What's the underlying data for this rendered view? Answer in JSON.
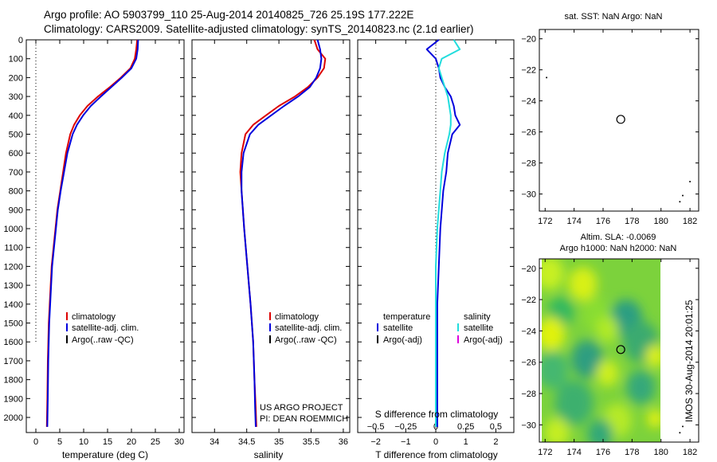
{
  "header": {
    "line1": "Argo profile: AO 5903799_110 25-Aug-2014 20140825_726 25.19S 177.222E",
    "line2": "Climatology: CARS2009. Satellite-adjusted climatology: synTS_20140823.nc (2.1d earlier)"
  },
  "side_label": "IMOS 30-Aug-2014 20:01:25",
  "colors": {
    "climatology": "#dd0000",
    "satellite": "#0000dd",
    "argo": "#000000",
    "sat_salinity": "#22dddd",
    "argo_salinity": "#dd00dd"
  },
  "chart_data": [
    {
      "type": "line",
      "id": "temperature",
      "xlabel": "temperature (deg C)",
      "ylabel": "",
      "xlim": [
        -2,
        31
      ],
      "ylim": [
        2080,
        0
      ],
      "xticks": [
        0,
        5,
        10,
        15,
        20,
        25,
        30
      ],
      "yticks": [
        0,
        100,
        200,
        300,
        400,
        500,
        600,
        700,
        800,
        900,
        1000,
        1100,
        1200,
        1300,
        1400,
        1500,
        1600,
        1700,
        1800,
        1900,
        2000
      ],
      "legend": [
        "climatology",
        "satellite-adj. clim.",
        "Argo(..raw -QC)"
      ],
      "series": [
        {
          "name": "climatology",
          "color": "#dd0000",
          "x": [
            21.2,
            21.0,
            20.7,
            19.8,
            17.8,
            15.5,
            13.0,
            10.8,
            9.2,
            8.0,
            7.2,
            6.3,
            5.7,
            5.1,
            4.5,
            4.1,
            3.7,
            3.3,
            3.1,
            2.9,
            2.7,
            2.5,
            2.4,
            2.3
          ],
          "y": [
            0,
            50,
            100,
            150,
            200,
            250,
            300,
            350,
            400,
            450,
            500,
            600,
            700,
            800,
            900,
            1000,
            1100,
            1200,
            1300,
            1400,
            1500,
            1700,
            1900,
            2050
          ]
        },
        {
          "name": "satellite-adj. clim.",
          "color": "#0000dd",
          "x": [
            21.4,
            21.3,
            21.0,
            20.0,
            18.0,
            15.8,
            13.6,
            11.5,
            9.9,
            8.6,
            7.7,
            6.6,
            5.9,
            5.2,
            4.6,
            4.2,
            3.8,
            3.4,
            3.2,
            3.0,
            2.8,
            2.6,
            2.5,
            2.4
          ],
          "y": [
            0,
            50,
            100,
            150,
            200,
            250,
            300,
            350,
            400,
            450,
            500,
            600,
            700,
            800,
            900,
            1000,
            1100,
            1200,
            1300,
            1400,
            1500,
            1700,
            1900,
            2050
          ]
        }
      ],
      "guide_x": 0
    },
    {
      "type": "line",
      "id": "salinity",
      "xlabel": "salinity",
      "xlim": [
        33.65,
        36.1
      ],
      "ylim": [
        2080,
        0
      ],
      "xticks": [
        34,
        34.5,
        35,
        35.5,
        36
      ],
      "legend": [
        "climatology",
        "satellite-adj. clim.",
        "Argo(..raw -QC)"
      ],
      "annotation": [
        "US ARGO PROJECT",
        "PI: DEAN ROEMMICH"
      ],
      "series": [
        {
          "name": "climatology",
          "color": "#dd0000",
          "x": [
            35.55,
            35.6,
            35.72,
            35.7,
            35.6,
            35.45,
            35.25,
            35.0,
            34.8,
            34.6,
            34.48,
            34.42,
            34.4,
            34.42,
            34.46,
            34.51,
            34.56,
            34.6,
            34.62,
            34.64,
            34.65
          ],
          "y": [
            0,
            50,
            100,
            150,
            200,
            250,
            300,
            350,
            400,
            450,
            500,
            600,
            700,
            800,
            1000,
            1200,
            1400,
            1600,
            1800,
            1950,
            2050
          ]
        },
        {
          "name": "satellite-adj. clim.",
          "color": "#0000dd",
          "x": [
            35.6,
            35.64,
            35.66,
            35.64,
            35.58,
            35.48,
            35.3,
            35.08,
            34.88,
            34.68,
            34.55,
            34.45,
            34.42,
            34.42,
            34.46,
            34.51,
            34.56,
            34.6,
            34.62,
            34.63,
            34.64
          ],
          "y": [
            0,
            50,
            100,
            150,
            200,
            250,
            300,
            350,
            400,
            450,
            500,
            600,
            700,
            800,
            1000,
            1200,
            1400,
            1600,
            1800,
            1950,
            2050
          ]
        }
      ]
    },
    {
      "type": "line",
      "id": "difference",
      "xlabel": "T difference from climatology",
      "xlabel_top": "S difference from climatology",
      "xlim": [
        -2.6,
        2.6
      ],
      "ylim": [
        2080,
        0
      ],
      "xticks": [
        -2,
        -1,
        0,
        1,
        2
      ],
      "xticks_top": [
        -0.5,
        -0.25,
        0,
        0.25,
        0.5
      ],
      "legend_temperature": [
        "temperature",
        "satellite",
        "Argo(-adj)"
      ],
      "legend_salinity": [
        "salinity",
        "satellite",
        "Argo(-adj)"
      ],
      "guide_x": 0,
      "series": [
        {
          "name": "temperature satellite",
          "color": "#0000dd",
          "x": [
            0.1,
            -0.3,
            0.0,
            0.1,
            0.15,
            0.3,
            0.5,
            0.6,
            0.65,
            0.8,
            0.55,
            0.4,
            0.35,
            0.25,
            0.15,
            0.1,
            0.05,
            0.05,
            0.05,
            0.05
          ],
          "y": [
            0,
            50,
            100,
            150,
            200,
            250,
            300,
            350,
            400,
            450,
            500,
            600,
            700,
            800,
            1000,
            1200,
            1400,
            1600,
            1800,
            2050
          ]
        },
        {
          "name": "salinity satellite",
          "color": "#22dddd",
          "x": [
            0.6,
            0.8,
            0.2,
            0.1,
            0.2,
            0.4,
            0.5,
            0.5,
            0.45,
            0.3,
            0.2,
            0.15,
            0.1,
            0.05,
            0.0,
            0.0,
            0.0,
            0.0,
            0.0
          ],
          "y": [
            0,
            50,
            100,
            150,
            200,
            300,
            400,
            450,
            500,
            600,
            700,
            800,
            900,
            1000,
            1200,
            1400,
            1600,
            1800,
            2050
          ]
        }
      ]
    },
    {
      "type": "scatter",
      "id": "sst-map",
      "title": "sat. SST: NaN Argo: NaN",
      "xlim": [
        171.6,
        182.6
      ],
      "ylim": [
        -31.1,
        -19.4
      ],
      "xticks": [
        172,
        174,
        176,
        178,
        180,
        182
      ],
      "yticks": [
        -20,
        -22,
        -24,
        -26,
        -28,
        -30
      ],
      "marker": [
        177.22,
        -25.19
      ],
      "dots": [
        [
          172.1,
          -22.5
        ],
        [
          181.3,
          -30.5
        ],
        [
          181.5,
          -30.1
        ],
        [
          182.0,
          -29.2
        ]
      ]
    },
    {
      "type": "heatmap",
      "id": "sla-map",
      "title_lines": [
        "Altim. SLA: -0.0069",
        "Argo h1000: NaN h2000: NaN"
      ],
      "xlim": [
        171.6,
        182.6
      ],
      "ylim": [
        -31.1,
        -19.4
      ],
      "xticks": [
        172,
        174,
        176,
        178,
        180,
        182
      ],
      "yticks": [
        -20,
        -22,
        -24,
        -26,
        -28,
        -30
      ],
      "data_xrange": [
        171.6,
        180.0
      ],
      "marker": [
        177.22,
        -25.19
      ],
      "dots": [
        [
          181.3,
          -30.5
        ],
        [
          181.5,
          -30.1
        ],
        [
          182.0,
          -29.2
        ]
      ],
      "blobs": [
        [
          172.3,
          -20.3,
          0.9,
          "#c8f020"
        ],
        [
          174.6,
          -21.0,
          0.9,
          "#d8f018"
        ],
        [
          173.1,
          -22.8,
          0.8,
          "#30b860"
        ],
        [
          175.5,
          -22.9,
          0.9,
          "#88dd30"
        ],
        [
          177.6,
          -23.2,
          1.0,
          "#2c9e82"
        ],
        [
          176.3,
          -23.9,
          0.7,
          "#b0ea28"
        ],
        [
          172.4,
          -24.2,
          0.9,
          "#e0f210"
        ],
        [
          174.9,
          -25.8,
          1.0,
          "#2e9e80"
        ],
        [
          178.6,
          -24.7,
          1.1,
          "#3aaa70"
        ],
        [
          179.6,
          -25.6,
          0.6,
          "#dcf014"
        ],
        [
          176.3,
          -26.7,
          0.7,
          "#cdef1c"
        ],
        [
          172.5,
          -26.5,
          1.0,
          "#44b870"
        ],
        [
          178.6,
          -27.6,
          0.9,
          "#36a87a"
        ],
        [
          174.0,
          -28.6,
          1.2,
          "#3cb06e"
        ],
        [
          177.0,
          -29.7,
          0.9,
          "#b6ea26"
        ],
        [
          179.6,
          -29.6,
          0.5,
          "#e4f210"
        ],
        [
          172.8,
          -30.5,
          0.8,
          "#c4ee20"
        ],
        [
          175.8,
          -30.6,
          0.8,
          "#30a878"
        ]
      ]
    }
  ]
}
